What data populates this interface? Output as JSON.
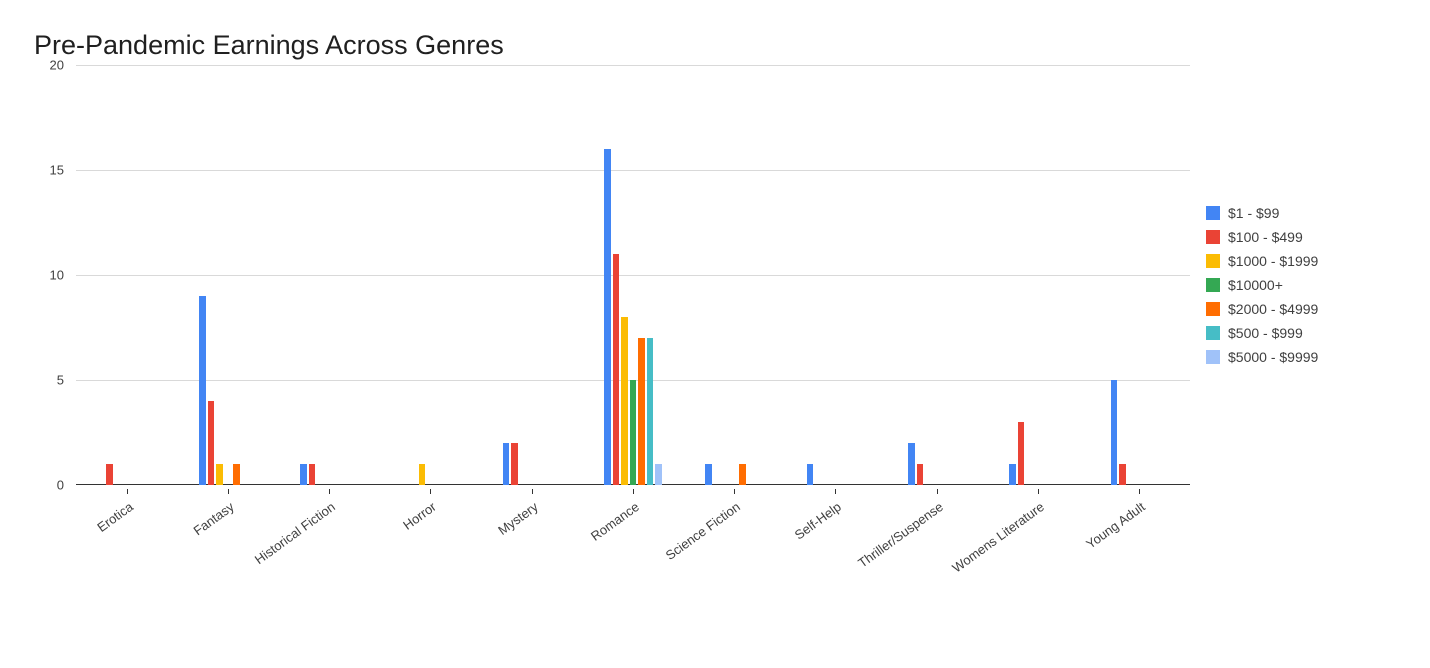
{
  "chart": {
    "type": "bar",
    "title": "Pre-Pandemic Earnings Across Genres",
    "title_fontsize": 27,
    "background_color": "#ffffff",
    "grid_color": "#d9d9d9",
    "axis_text_color": "#404040",
    "label_fontsize": 13,
    "ylim": [
      0,
      20
    ],
    "ytick_step": 5,
    "y_ticks": [
      0,
      5,
      10,
      15,
      20
    ],
    "bar_group_gap": 2,
    "bar_width": 6.5,
    "x_label_rotation_deg": -36,
    "categories": [
      "Erotica",
      "Fantasy",
      "Historical Fiction",
      "Horror",
      "Mystery",
      "Romance",
      "Science Fiction",
      "Self-Help",
      "Thriller/Suspense",
      "Womens Literature",
      "Young Adult"
    ],
    "series": [
      {
        "name": "$1 - $99",
        "color": "#4285f4",
        "values": [
          0,
          9,
          1,
          0,
          2,
          16,
          1,
          1,
          2,
          1,
          5
        ]
      },
      {
        "name": "$100 - $499",
        "color": "#ea4335",
        "values": [
          1,
          4,
          1,
          0,
          2,
          11,
          0,
          0,
          1,
          3,
          1
        ]
      },
      {
        "name": "$1000 - $1999",
        "color": "#fbbc04",
        "values": [
          0,
          1,
          0,
          1,
          0,
          8,
          0,
          0,
          0,
          0,
          0
        ]
      },
      {
        "name": "$10000+",
        "color": "#34a853",
        "values": [
          0,
          0,
          0,
          0,
          0,
          5,
          0,
          0,
          0,
          0,
          0
        ]
      },
      {
        "name": "$2000 - $4999",
        "color": "#ff6d01",
        "values": [
          0,
          1,
          0,
          0,
          0,
          7,
          1,
          0,
          0,
          0,
          0
        ]
      },
      {
        "name": "$500 - $999",
        "color": "#46bdc6",
        "values": [
          0,
          0,
          0,
          0,
          0,
          7,
          0,
          0,
          0,
          0,
          0
        ]
      },
      {
        "name": "$5000 - $9999",
        "color": "#a0c2f9",
        "values": [
          0,
          0,
          0,
          0,
          0,
          1,
          0,
          0,
          0,
          0,
          0
        ]
      }
    ]
  }
}
